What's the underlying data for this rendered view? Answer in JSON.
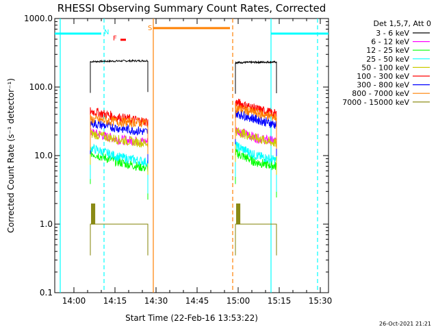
{
  "chart_data": {
    "type": "line",
    "title": "RHESSI Observing Summary Count Rates, Corrected",
    "xlabel": "Start Time (22-Feb-16 13:53:22)",
    "ylabel": "Corrected Count Rate (s⁻¹ detector⁻¹)",
    "yscale": "log",
    "ylim": [
      0.1,
      1000
    ],
    "xlim": [
      "13:53",
      "15:33"
    ],
    "x_ticks": [
      "14:00",
      "14:15",
      "14:30",
      "14:45",
      "15:00",
      "15:15",
      "15:30"
    ],
    "y_ticks": [
      "0.1",
      "1.0",
      "10.0",
      "100.0",
      "1000.0"
    ],
    "legend_position": "top-right",
    "legend_header": "Det 1,5,7, Att 0",
    "footer_date": "26-Oct-2021 21:21",
    "series": [
      {
        "name": "3 - 6 keV",
        "color": "#000000",
        "seg1": [
          235,
          240,
          242
        ],
        "seg2": [
          228,
          230,
          232
        ]
      },
      {
        "name": "6 - 12 keV",
        "color": "#ff00ff",
        "seg1": [
          22,
          17,
          16
        ],
        "seg2": [
          24,
          18,
          16
        ]
      },
      {
        "name": "12 - 25 keV",
        "color": "#00ff00",
        "seg1": [
          11,
          8,
          6.5
        ],
        "seg2": [
          11,
          8,
          7
        ]
      },
      {
        "name": "25 - 50 keV",
        "color": "#00ffff",
        "seg1": [
          13,
          9.5,
          8
        ],
        "seg2": [
          14,
          10,
          8.5
        ]
      },
      {
        "name": "50 - 100 keV",
        "color": "#cccc00",
        "seg1": [
          21,
          17,
          15
        ],
        "seg2": [
          23,
          18,
          15
        ]
      },
      {
        "name": "100 - 300 keV",
        "color": "#ff0000",
        "seg1": [
          45,
          36,
          31
        ],
        "seg2": [
          60,
          48,
          40
        ]
      },
      {
        "name": "300 - 800 keV",
        "color": "#0000ff",
        "seg1": [
          30,
          25,
          22
        ],
        "seg2": [
          42,
          34,
          28
        ]
      },
      {
        "name": "800 - 7000 keV",
        "color": "#ff8000",
        "seg1": [
          34,
          31,
          30
        ],
        "seg2": [
          50,
          42,
          36
        ]
      },
      {
        "name": "7000 - 15000 keV",
        "color": "#808000",
        "seg1": [
          1.0,
          1.0,
          1.0
        ],
        "seg2": [
          1.0,
          1.0,
          1.0
        ]
      }
    ],
    "segments": [
      [
        "14:06",
        "14:27"
      ],
      [
        "14:59",
        "15:14"
      ]
    ],
    "annotations": [
      {
        "label": "N",
        "color": "#00ffff",
        "x": "14:12"
      },
      {
        "label": "F",
        "color": "#ff0000",
        "x": "14:15"
      },
      {
        "label": "S",
        "color": "#ff8000",
        "x": "14:28"
      }
    ],
    "bars": [
      {
        "type": "night",
        "color": "#00ffff",
        "ranges": [
          [
            "13:53",
            "14:10"
          ],
          [
            "15:12",
            "15:33"
          ]
        ]
      },
      {
        "type": "flare",
        "color": "#ff0000",
        "ranges": [
          [
            "14:17",
            "14:19"
          ]
        ]
      },
      {
        "type": "saa",
        "color": "#ff8000",
        "ranges": [
          [
            "14:29",
            "14:57"
          ]
        ]
      }
    ],
    "vlines": [
      {
        "x": "13:55",
        "color": "#00ffff",
        "dash": false
      },
      {
        "x": "14:11",
        "color": "#00ffff",
        "dash": true
      },
      {
        "x": "14:29",
        "color": "#ff8000",
        "dash": false
      },
      {
        "x": "14:58",
        "color": "#ff8000",
        "dash": true
      },
      {
        "x": "15:12",
        "color": "#00ffff",
        "dash": false
      },
      {
        "x": "15:29",
        "color": "#00ffff",
        "dash": true
      }
    ]
  }
}
